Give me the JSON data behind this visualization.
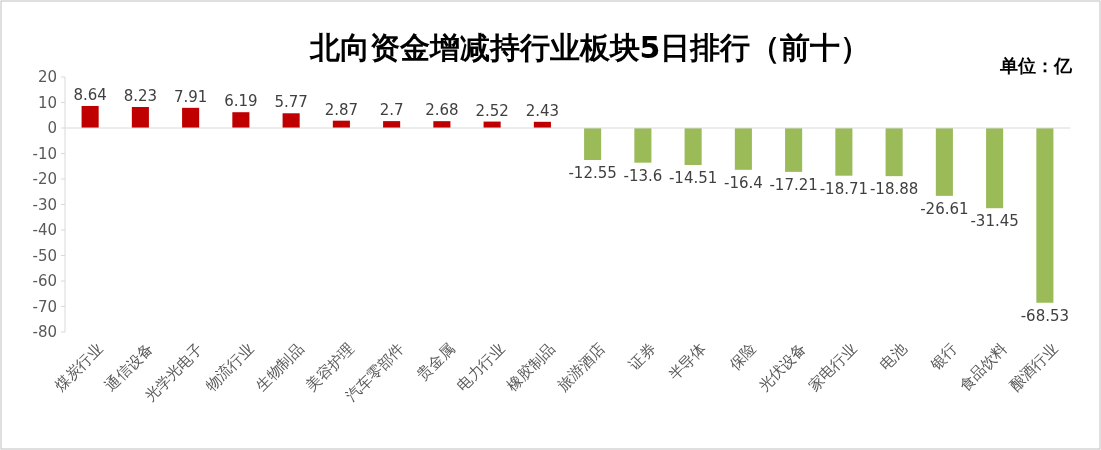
{
  "chart_data": {
    "type": "bar",
    "title": "北向资金增减持行业板块5日排行（前十）",
    "annotations": [
      "单位：亿"
    ],
    "categories": [
      "煤炭行业",
      "通信设备",
      "光学光电子",
      "物流行业",
      "生物制品",
      "美容护理",
      "汽车零部件",
      "贵金属",
      "电力行业",
      "橡胶制品",
      "旅游酒店",
      "证券",
      "半导体",
      "保险",
      "光伏设备",
      "家电行业",
      "电池",
      "银行",
      "食品饮料",
      "酿酒行业"
    ],
    "values": [
      8.64,
      8.23,
      7.91,
      6.19,
      5.77,
      2.87,
      2.7,
      2.68,
      2.52,
      2.43,
      -12.55,
      -13.6,
      -14.51,
      -16.4,
      -17.21,
      -18.71,
      -18.88,
      -26.61,
      -31.45,
      -68.53
    ],
    "colors": [
      "#c00000",
      "#c00000",
      "#c00000",
      "#c00000",
      "#c00000",
      "#c00000",
      "#c00000",
      "#c00000",
      "#c00000",
      "#c00000",
      "#9bbb59",
      "#9bbb59",
      "#9bbb59",
      "#9bbb59",
      "#9bbb59",
      "#9bbb59",
      "#9bbb59",
      "#9bbb59",
      "#9bbb59",
      "#9bbb59"
    ],
    "ylim": [
      -80,
      20
    ],
    "yticks": [
      -80,
      -70,
      -60,
      -50,
      -40,
      -30,
      -20,
      -10,
      0,
      10,
      20
    ],
    "data_labels": true
  }
}
